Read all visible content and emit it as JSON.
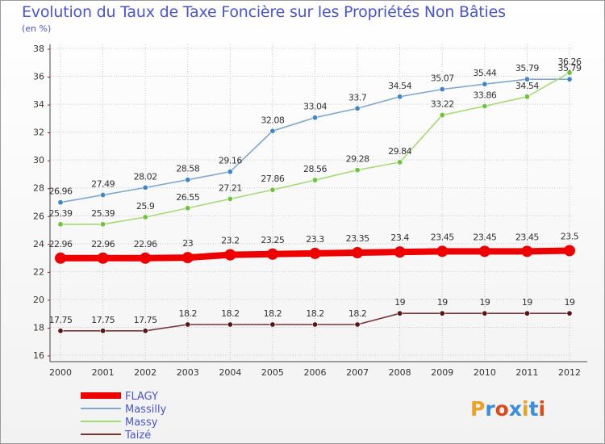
{
  "header": {
    "title": "Evolution du Taux de Taxe Foncière sur les Propriétés Non Bâties",
    "subtitle": "(en %)"
  },
  "logo": {
    "text": "Proxiti",
    "letter_colors": [
      "#f0a020",
      "#3a8de0",
      "#e04a1a",
      "#3a8de0",
      "#f0a020",
      "#3a8de0",
      "#e04a1a"
    ]
  },
  "chart_data": {
    "type": "line",
    "title": "Evolution du Taux de Taxe Foncière sur les Propriétés Non Bâties",
    "ylabel": "(en %)",
    "xlabel": "",
    "categories": [
      "2000",
      "2001",
      "2002",
      "2003",
      "2004",
      "2005",
      "2006",
      "2007",
      "2008",
      "2009",
      "2010",
      "2011",
      "2012"
    ],
    "ylim": [
      16,
      38
    ],
    "yticks": [
      16,
      18,
      20,
      22,
      24,
      26,
      28,
      30,
      32,
      34,
      36,
      38
    ],
    "grid": true,
    "legend_position": "bottom-left",
    "series": [
      {
        "name": "FLAGY",
        "color": "#ee0000",
        "emphasis": true,
        "values": [
          22.96,
          22.96,
          22.96,
          23,
          23.2,
          23.25,
          23.3,
          23.35,
          23.4,
          23.45,
          23.45,
          23.45,
          23.5
        ],
        "labels": [
          "22.96",
          "22.96",
          "22.96",
          "23",
          "23.2",
          "23.25",
          "23.3",
          "23.35",
          "23.4",
          "23.45",
          "23.45",
          "23.45",
          "23.5"
        ]
      },
      {
        "name": "Massilly",
        "color": "#7fa7d4",
        "marker": "#3f86c8",
        "values": [
          26.96,
          27.49,
          28.02,
          28.58,
          29.16,
          32.08,
          33.04,
          33.7,
          34.54,
          35.07,
          35.44,
          35.79,
          35.79
        ],
        "labels": [
          "26.96",
          "27.49",
          "28.02",
          "28.58",
          "29.16",
          "32.08",
          "33.04",
          "33.7",
          "34.54",
          "35.07",
          "35.44",
          "35.79",
          "35.79"
        ]
      },
      {
        "name": "Massy",
        "color": "#a2dc74",
        "marker": "#6cc43a",
        "values": [
          25.39,
          25.39,
          25.9,
          26.55,
          27.21,
          27.86,
          28.56,
          29.28,
          29.84,
          33.22,
          33.86,
          34.54,
          36.26
        ],
        "labels": [
          "25.39",
          "25.39",
          "25.9",
          "26.55",
          "27.21",
          "27.86",
          "28.56",
          "29.28",
          "29.84",
          "33.22",
          "33.86",
          "34.54",
          "36.26"
        ]
      },
      {
        "name": "Taizé",
        "color": "#7a3535",
        "marker": "#5a1414",
        "values": [
          17.75,
          17.75,
          17.75,
          18.2,
          18.2,
          18.2,
          18.2,
          18.2,
          19,
          19,
          19,
          19,
          19
        ],
        "labels": [
          "17.75",
          "17.75",
          "17.75",
          "18.2",
          "18.2",
          "18.2",
          "18.2",
          "18.2",
          "19",
          "19",
          "19",
          "19",
          "19"
        ]
      }
    ]
  }
}
